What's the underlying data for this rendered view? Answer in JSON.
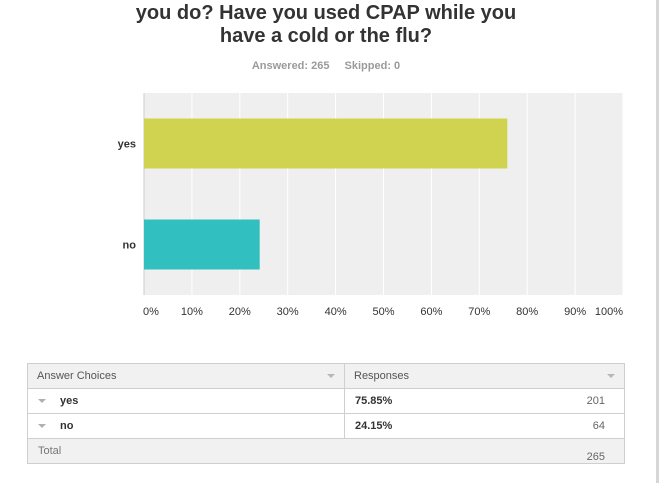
{
  "question": {
    "line1": "you do?  Have you used CPAP while you",
    "line2": "have a cold or the flu?"
  },
  "stats": {
    "answered": "Answered: 265",
    "skipped": "Skipped: 0"
  },
  "chart_data": {
    "type": "bar",
    "orientation": "horizontal",
    "categories": [
      "yes",
      "no"
    ],
    "values": [
      75.85,
      24.15
    ],
    "colors": [
      "#cfd350",
      "#32bfbf"
    ],
    "xlim": [
      0,
      100
    ],
    "xticks": [
      "0%",
      "10%",
      "20%",
      "30%",
      "40%",
      "50%",
      "60%",
      "70%",
      "80%",
      "90%",
      "100%"
    ],
    "grid": true,
    "background": "#efefef"
  },
  "table": {
    "headers": [
      "Answer Choices",
      "Responses"
    ],
    "rows": [
      {
        "choice": "yes",
        "percent": "75.85%",
        "count": "201"
      },
      {
        "choice": "no",
        "percent": "24.15%",
        "count": "64"
      }
    ],
    "total_label": "Total",
    "total_count": "265"
  }
}
